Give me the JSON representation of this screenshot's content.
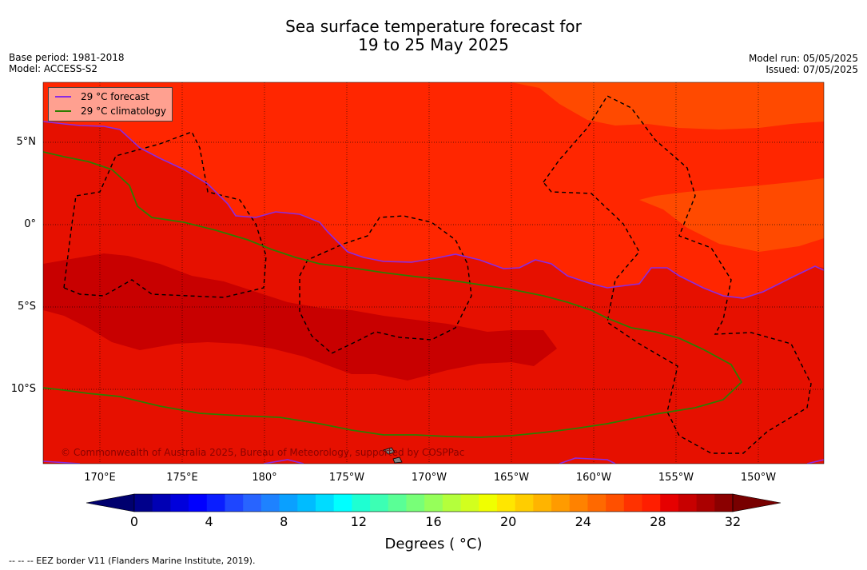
{
  "title_line1": "Sea surface temperature forecast for",
  "title_line2": "19 to 25 May 2025",
  "base_period": "Base period: 1981-2018",
  "model": "Model: ACCESS-S2",
  "model_run": "Model run: 05/05/2025",
  "issued": "Issued: 07/05/2025",
  "legend": {
    "forecast_label": "29 °C  forecast",
    "forecast_color": "#8a2be2",
    "climatology_label": "29 °C  climatology",
    "climatology_color": "#2e7d00"
  },
  "copyright": "© Commonwealth of Australia 2025, Bureau of Meteorology, supported by COSPPac",
  "lat_labels": [
    "5°N",
    "0°",
    "5°S",
    "10°S"
  ],
  "lon_labels": [
    "170°E",
    "175°E",
    "180°",
    "175°W",
    "170°W",
    "165°W",
    "160°W",
    "155°W",
    "150°W"
  ],
  "colorbar": {
    "ticks": [
      "0",
      "4",
      "8",
      "12",
      "16",
      "20",
      "24",
      "28",
      "32"
    ],
    "label": "Degrees ( °C)",
    "colors": [
      "#00008b",
      "#0000b4",
      "#0000dc",
      "#0000ff",
      "#0a1eff",
      "#1e46ff",
      "#2864ff",
      "#1e82ff",
      "#0aa0ff",
      "#00bcff",
      "#00dcff",
      "#00ffff",
      "#1effd2",
      "#3cffb4",
      "#5aff96",
      "#78ff78",
      "#96ff5a",
      "#b4ff3c",
      "#d2ff1e",
      "#f0ff00",
      "#ffe600",
      "#ffcd00",
      "#ffb400",
      "#ff9b00",
      "#ff8200",
      "#ff6900",
      "#ff5000",
      "#ff3200",
      "#ff1e00",
      "#e60000",
      "#c80000",
      "#aa0000",
      "#8b0000"
    ],
    "under_color": "#00006e",
    "over_color": "#780000"
  },
  "footer": "--  --  -- EEZ border V11 (Flanders Marine Institute, 2019).",
  "map_colors": {
    "base": "#e61000",
    "warm_north": "#ff2600",
    "warmest_ne": "#ff4a00",
    "cool_band": "#c80000"
  }
}
